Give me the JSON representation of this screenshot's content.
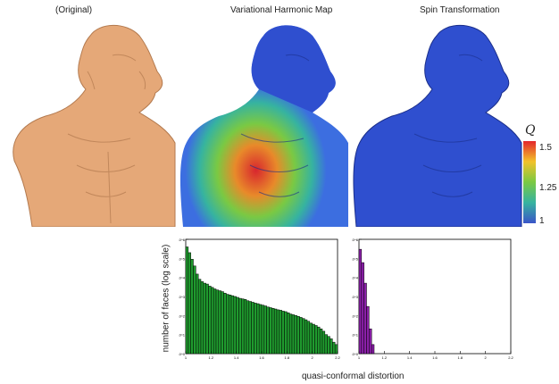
{
  "figure": {
    "panels": [
      {
        "title": "(Original)",
        "color": "#e5a878"
      },
      {
        "title": "Variational Harmonic Map",
        "color": "#3c6ee0"
      },
      {
        "title": "Spin Transformation",
        "color": "#2f4fcf"
      }
    ],
    "colorbar": {
      "symbol": "Q",
      "ticks": [
        "1.5",
        "1.25",
        "1"
      ],
      "colors": [
        "#e3262c",
        "#f2c22a",
        "#7ac943",
        "#36b3a0",
        "#3a55c8"
      ]
    },
    "histograms": {
      "ylabel": "number of faces (log scale)",
      "xlabel": "quasi-conformal distortion"
    }
  },
  "chart_data": [
    {
      "type": "bar",
      "name": "",
      "color": "#1f9a2e",
      "ylog": true,
      "xlim": [
        1.0,
        2.2
      ],
      "ylim": [
        1,
        1000000
      ],
      "xticks": [
        "1",
        "1.2",
        "1.4",
        "1.6",
        "1.8",
        "2",
        "2.2"
      ],
      "yticks": [
        "10^0",
        "10^1",
        "10^2",
        "10^3",
        "10^4",
        "10^5",
        "10^6"
      ],
      "bin_width": 0.02,
      "x": [
        1.0,
        1.02,
        1.04,
        1.06,
        1.08,
        1.1,
        1.12,
        1.14,
        1.16,
        1.18,
        1.2,
        1.22,
        1.24,
        1.26,
        1.28,
        1.3,
        1.32,
        1.34,
        1.36,
        1.38,
        1.4,
        1.42,
        1.44,
        1.46,
        1.48,
        1.5,
        1.52,
        1.54,
        1.56,
        1.58,
        1.6,
        1.62,
        1.64,
        1.66,
        1.68,
        1.7,
        1.72,
        1.74,
        1.76,
        1.78,
        1.8,
        1.82,
        1.84,
        1.86,
        1.88,
        1.9,
        1.92,
        1.94,
        1.96,
        1.98,
        2.0,
        2.02,
        2.04,
        2.06,
        2.08,
        2.1,
        2.12,
        2.14,
        2.16,
        2.18
      ],
      "values": [
        400000,
        200000,
        90000,
        40000,
        15000,
        8000,
        6000,
        5000,
        4500,
        3500,
        3000,
        2500,
        2200,
        2000,
        1800,
        1500,
        1300,
        1200,
        1100,
        1000,
        900,
        800,
        750,
        700,
        600,
        550,
        500,
        450,
        420,
        380,
        350,
        320,
        280,
        260,
        240,
        220,
        200,
        190,
        170,
        160,
        140,
        120,
        110,
        100,
        90,
        80,
        70,
        60,
        50,
        40,
        35,
        30,
        25,
        20,
        15,
        10,
        8,
        6,
        4,
        3
      ]
    },
    {
      "type": "bar",
      "name": "",
      "color": "#8a1fa8",
      "ylog": true,
      "xlim": [
        1.0,
        2.2
      ],
      "ylim": [
        1,
        1000000
      ],
      "xticks": [
        "1",
        "1.2",
        "1.4",
        "1.6",
        "1.8",
        "2",
        "2.2"
      ],
      "yticks": [
        "10^0",
        "10^1",
        "10^2",
        "10^3",
        "10^4",
        "10^5",
        "10^6"
      ],
      "bin_width": 0.02,
      "x": [
        1.0,
        1.02,
        1.04,
        1.06,
        1.08,
        1.1
      ],
      "values": [
        300000,
        60000,
        5000,
        300,
        20,
        3
      ]
    }
  ]
}
